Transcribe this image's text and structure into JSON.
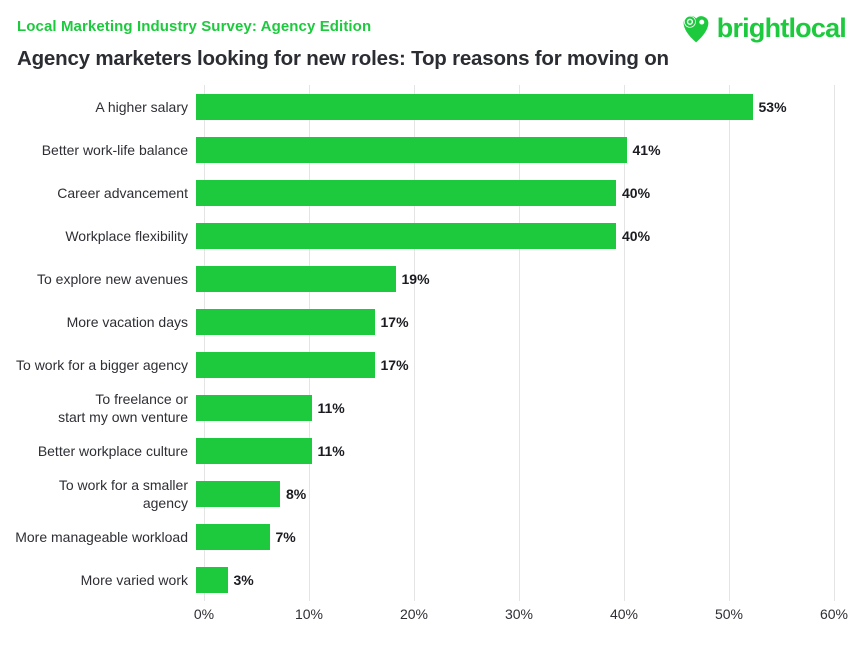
{
  "header": {
    "eyebrow": "Local Marketing Industry Survey: Agency Edition",
    "title": "Agency marketers looking for new roles: Top reasons for moving on",
    "brand": {
      "name": "brightlocal",
      "icon": "brightlocal-heart-pin-icon"
    }
  },
  "colors": {
    "accent_green": "#1DCA3E",
    "title_text": "#2B2D33",
    "label_text": "#2E2F35",
    "value_text": "#1B1C21",
    "gridline": "#E4E4E4"
  },
  "chart_data": {
    "type": "bar",
    "orientation": "horizontal",
    "title": "Agency marketers looking for new roles: Top reasons for moving on",
    "categories": [
      "A higher salary",
      "Better work-life balance",
      "Career advancement",
      "Workplace flexibility",
      "To explore new avenues",
      "More vacation days",
      "To work for a bigger agency",
      "To freelance or\nstart my own venture",
      "Better workplace culture",
      "To work for a smaller\nagency",
      "More manageable workload",
      "More varied work"
    ],
    "values": [
      53,
      41,
      40,
      40,
      19,
      17,
      17,
      11,
      11,
      8,
      7,
      3
    ],
    "value_labels": [
      "53%",
      "41%",
      "40%",
      "40%",
      "19%",
      "17%",
      "17%",
      "11%",
      "11%",
      "8%",
      "7%",
      "3%"
    ],
    "x_ticks": [
      "0%",
      "10%",
      "20%",
      "30%",
      "40%",
      "50%",
      "60%"
    ],
    "xlim": [
      0,
      60
    ],
    "xlabel": "",
    "ylabel": "",
    "grid": "vertical",
    "legend": "none",
    "bar_color": "#1DCA3E"
  }
}
